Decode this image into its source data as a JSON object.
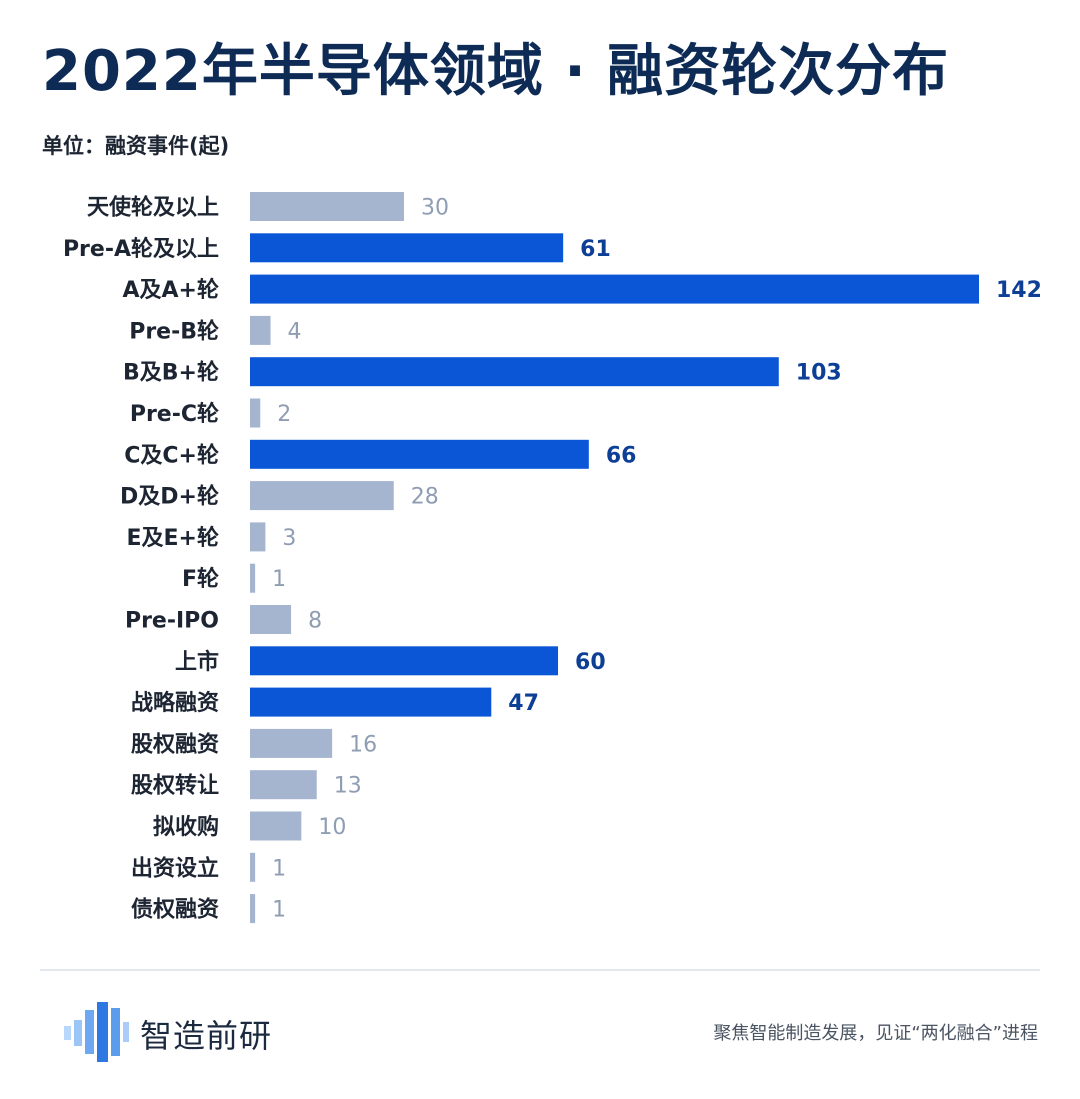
{
  "title": "2022年半导体领域 · 融资轮次分布",
  "unit_label": "单位：融资事件(起)",
  "colors": {
    "title": "#0d2b55",
    "highlight_bar": "#0a56d6",
    "highlight_label": "#0d3f96",
    "muted_bar": "#a5b4cf",
    "muted_label": "#8f9db3",
    "category_text": "#1d2533"
  },
  "chart_data": {
    "type": "bar",
    "orientation": "horizontal",
    "categories": [
      "天使轮及以上",
      "Pre-A轮及以上",
      "A及A+轮",
      "Pre-B轮",
      "B及B+轮",
      "Pre-C轮",
      "C及C+轮",
      "D及D+轮",
      "E及E+轮",
      "F轮",
      "Pre-IPO",
      "上市",
      "战略融资",
      "股权融资",
      "股权转让",
      "拟收购",
      "出资设立",
      "债权融资"
    ],
    "values": [
      30,
      61,
      142,
      4,
      103,
      2,
      66,
      28,
      3,
      1,
      8,
      60,
      47,
      16,
      13,
      10,
      1,
      1
    ],
    "highlighted": [
      false,
      true,
      true,
      false,
      true,
      false,
      true,
      false,
      false,
      false,
      false,
      true,
      true,
      false,
      false,
      false,
      false,
      false
    ],
    "data_labels": true,
    "grid": false,
    "legend": "none",
    "xlim": [
      0,
      142
    ]
  },
  "footer": {
    "brand": "智造前研",
    "logo_icon": "bar-wave-logo-icon",
    "slogan": "聚焦智能制造发展，见证“两化融合”进程"
  }
}
